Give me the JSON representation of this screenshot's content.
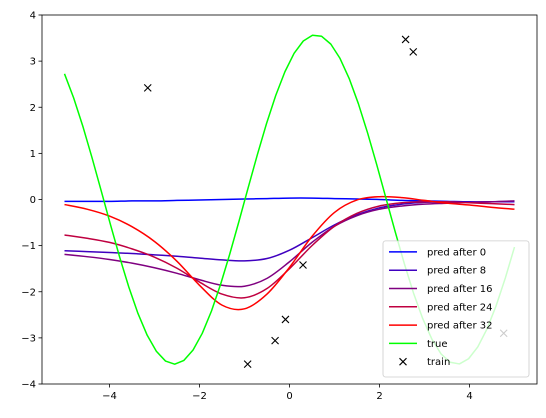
{
  "chart_data": {
    "type": "line",
    "title": "",
    "xlabel": "",
    "ylabel": "",
    "xlim": [
      -5.5,
      5.5
    ],
    "ylim": [
      -4,
      4
    ],
    "xticks": [
      -4,
      -2,
      0,
      2,
      4
    ],
    "xtick_labels": [
      "−4",
      "−2",
      "0",
      "2",
      "4"
    ],
    "yticks": [
      -4,
      -3,
      -2,
      -1,
      0,
      1,
      2,
      3,
      4
    ],
    "ytick_labels": [
      "−4",
      "−3",
      "−2",
      "−1",
      "0",
      "1",
      "2",
      "3",
      "4"
    ],
    "grid": false,
    "legend_position": "lower right",
    "x": [
      -5,
      -4.5,
      -4,
      -3.5,
      -3,
      -2.5,
      -2,
      -1.5,
      -1,
      -0.5,
      0,
      0.5,
      1,
      1.5,
      2,
      2.5,
      3,
      3.5,
      4,
      4.5,
      5
    ],
    "series": [
      {
        "name": "pred after 0",
        "color": "#0000ff",
        "style": "line",
        "values": [
          -0.04,
          -0.04,
          -0.04,
          -0.03,
          -0.03,
          -0.02,
          -0.01,
          0.0,
          0.01,
          0.02,
          0.03,
          0.03,
          0.02,
          0.01,
          0.0,
          -0.02,
          -0.03,
          -0.04,
          -0.05,
          -0.05,
          -0.05
        ]
      },
      {
        "name": "pred after 8",
        "color": "#3f00c0",
        "style": "line",
        "values": [
          -1.11,
          -1.13,
          -1.15,
          -1.17,
          -1.2,
          -1.23,
          -1.27,
          -1.31,
          -1.33,
          -1.28,
          -1.1,
          -0.83,
          -0.55,
          -0.33,
          -0.18,
          -0.1,
          -0.06,
          -0.06,
          -0.06,
          -0.05,
          -0.04
        ]
      },
      {
        "name": "pred after 16",
        "color": "#7f0080",
        "style": "line",
        "values": [
          -1.19,
          -1.24,
          -1.3,
          -1.38,
          -1.48,
          -1.6,
          -1.74,
          -1.86,
          -1.88,
          -1.71,
          -1.35,
          -0.93,
          -0.58,
          -0.35,
          -0.21,
          -0.14,
          -0.1,
          -0.08,
          -0.06,
          -0.05,
          -0.03
        ]
      },
      {
        "name": "pred after 24",
        "color": "#bf0040",
        "style": "line",
        "values": [
          -0.77,
          -0.84,
          -0.93,
          -1.07,
          -1.25,
          -1.49,
          -1.79,
          -2.05,
          -2.13,
          -1.93,
          -1.5,
          -1.0,
          -0.58,
          -0.3,
          -0.14,
          -0.07,
          -0.05,
          -0.05,
          -0.07,
          -0.09,
          -0.11
        ]
      },
      {
        "name": "pred after 32",
        "color": "#ff0000",
        "style": "line",
        "values": [
          -0.11,
          -0.21,
          -0.36,
          -0.59,
          -0.91,
          -1.34,
          -1.86,
          -2.29,
          -2.37,
          -2.05,
          -1.47,
          -0.8,
          -0.28,
          -0.01,
          0.06,
          0.04,
          -0.02,
          -0.08,
          -0.12,
          -0.17,
          -0.21
        ]
      },
      {
        "name": "true",
        "color": "#00ff00",
        "style": "line",
        "sample": "sine",
        "amplitude": 3.57,
        "phase": 0.99,
        "x_range": [
          -5,
          5
        ]
      },
      {
        "name": "train",
        "color": "#000000",
        "style": "x-marker",
        "points": [
          [
            -3.15,
            2.42
          ],
          [
            -0.93,
            -3.57
          ],
          [
            -0.32,
            -3.06
          ],
          [
            -0.09,
            -2.6
          ],
          [
            0.3,
            -1.42
          ],
          [
            2.58,
            3.47
          ],
          [
            2.75,
            3.2
          ],
          [
            4.76,
            -2.9
          ]
        ]
      }
    ]
  }
}
